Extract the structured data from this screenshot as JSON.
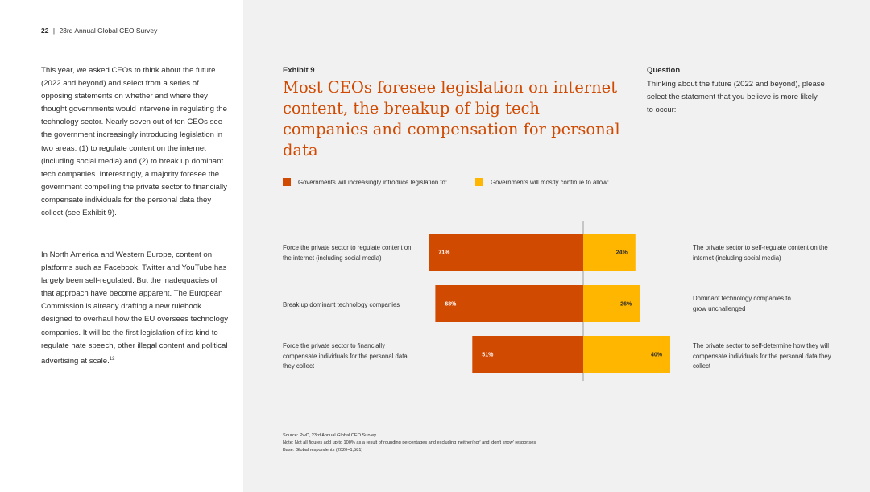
{
  "header": {
    "page_number": "22",
    "separator": "|",
    "title": "23rd Annual Global CEO Survey"
  },
  "body": {
    "paragraph1": "This year, we asked CEOs to think about the future (2022 and beyond) and select from a series of opposing statements on whether and where they thought governments would intervene in regulating the technology sector. Nearly seven out of ten CEOs see the government increasingly introducing legislation in two areas: (1) to regulate content on the internet (including social media) and (2) to break up dominant tech companies. Interestingly, a majority foresee the government compelling the private sector to financially compensate individuals for the personal data they collect (see Exhibit 9).",
    "paragraph2": "In North America and Western Europe, content on platforms such as Facebook, Twitter and YouTube has largely been self-regulated. But the inadequacies of that approach have become apparent. The European Commission is already drafting a new rulebook designed to overhaul how the EU oversees technology companies. It will be the first legislation of its kind to regulate hate speech, other illegal content and political advertising at scale.",
    "footnote_ref": "12"
  },
  "exhibit": {
    "label": "Exhibit 9",
    "title": "Most CEOs foresee legislation on internet content, the breakup of big tech companies and compensation for personal data"
  },
  "question": {
    "label": "Question",
    "text": "Thinking about the future (2022 and beyond), please select the statement that you believe is more likely to occur:"
  },
  "colors": {
    "legislation": "#d04a02",
    "continue": "#ffb600",
    "axis": "#9a9a9a"
  },
  "chart_data": {
    "type": "bar",
    "orientation": "diverging-horizontal",
    "legend": {
      "legislation": "Governments will increasingly introduce legislation to:",
      "continue": "Governments will mostly continue to allow:"
    },
    "categories": [
      {
        "left_label": "Force the private sector to regulate content on the internet (including social media)",
        "right_label": "The private sector to self-regulate content on the internet (including social media)",
        "legislation": 71,
        "continue": 24,
        "legislation_label": "71%",
        "continue_label": "24%"
      },
      {
        "left_label": "Break up dominant technology companies",
        "right_label": "Dominant technology companies to grow unchallenged",
        "legislation": 68,
        "continue": 26,
        "legislation_label": "68%",
        "continue_label": "26%"
      },
      {
        "left_label": "Force the private sector to financially compensate individuals for the personal data they collect",
        "right_label": "The private sector to self-determine how they will compensate individuals for the personal data they collect",
        "legislation": 51,
        "continue": 40,
        "legislation_label": "51%",
        "continue_label": "40%"
      }
    ]
  },
  "source": {
    "line1": "Source: PwC, 23rd Annual Global CEO Survey",
    "line2": "Note: Not all figures add up to 100% as a result of rounding percentages and excluding 'neither/nor' and 'don't know' responses",
    "line3": "Base: Global respondents (2020=1,581)"
  }
}
